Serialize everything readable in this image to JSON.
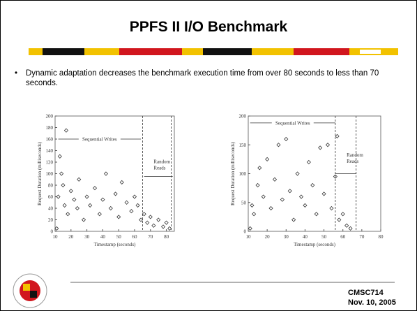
{
  "title": "PPFS II I/O Benchmark",
  "bullets": [
    "Dynamic adaptation decreases the benchmark execution time from over 80 seconds to less than 70 seconds."
  ],
  "footer": {
    "course": "CMSC714",
    "date": "Nov. 10, 2005"
  },
  "chart_data": [
    {
      "type": "scatter",
      "xlabel": "Timestamp (seconds)",
      "ylabel": "Request Duration (milliseconds)",
      "annotations": [
        "Sequential Writes",
        "Random Reads"
      ],
      "vlines": [
        65,
        83
      ],
      "color": "#333333",
      "xlim": [
        10,
        85
      ],
      "xticks": [
        10,
        20,
        30,
        40,
        50,
        60,
        70,
        80
      ],
      "ylim": [
        0,
        200
      ],
      "yticks": [
        0,
        20,
        40,
        60,
        80,
        100,
        120,
        140,
        160,
        180,
        200
      ],
      "x": [
        11,
        12,
        13,
        14,
        15,
        16,
        17,
        18,
        20,
        22,
        24,
        25,
        28,
        30,
        32,
        35,
        38,
        40,
        42,
        45,
        48,
        50,
        52,
        55,
        58,
        60,
        62,
        64,
        66,
        68,
        70,
        72,
        75,
        78,
        80,
        82
      ],
      "values": [
        5,
        60,
        130,
        100,
        80,
        45,
        175,
        30,
        70,
        55,
        40,
        90,
        20,
        60,
        45,
        75,
        30,
        55,
        100,
        40,
        65,
        25,
        85,
        50,
        35,
        60,
        45,
        20,
        30,
        15,
        25,
        10,
        20,
        8,
        15,
        5
      ]
    },
    {
      "type": "scatter",
      "xlabel": "Timestamp (seconds)",
      "ylabel": "Request Duration (milliseconds)",
      "annotations": [
        "Sequential Writes",
        "Random Reads"
      ],
      "vlines": [
        56,
        67
      ],
      "color": "#333333",
      "xlim": [
        10,
        80
      ],
      "xticks": [
        10,
        20,
        30,
        40,
        50,
        60,
        70,
        80
      ],
      "ylim": [
        0,
        200
      ],
      "yticks": [
        0,
        50,
        100,
        150,
        200
      ],
      "x": [
        11,
        12,
        13,
        15,
        16,
        18,
        20,
        22,
        24,
        26,
        28,
        30,
        32,
        34,
        36,
        38,
        40,
        42,
        44,
        46,
        48,
        50,
        52,
        54,
        56,
        57,
        58,
        60,
        62,
        64
      ],
      "values": [
        5,
        45,
        30,
        80,
        110,
        60,
        125,
        40,
        90,
        150,
        55,
        160,
        70,
        20,
        100,
        60,
        45,
        120,
        80,
        30,
        145,
        65,
        150,
        40,
        95,
        165,
        20,
        30,
        10,
        5
      ]
    }
  ]
}
